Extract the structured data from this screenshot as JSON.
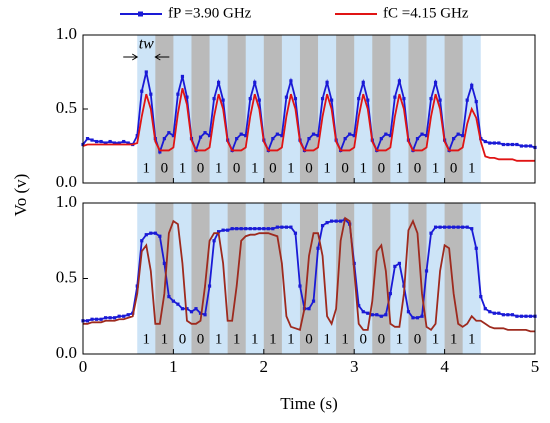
{
  "ylabel": "Vo (v)",
  "chart_data": [
    {
      "type": "line",
      "legend": "top",
      "xlim": [
        0,
        5
      ],
      "ylim": [
        0,
        1
      ],
      "yticks": [
        {
          "value": 0,
          "label": "0.0"
        },
        0.5,
        {
          "value": 1,
          "label": "1.0"
        }
      ],
      "annotation": "tw",
      "bit_edges": [
        0.6,
        0.8,
        1.0,
        1.2,
        1.4,
        1.6,
        1.8,
        2.0,
        2.2,
        2.4,
        2.6,
        2.8,
        3.0,
        3.2,
        3.4,
        3.6,
        3.8,
        4.0,
        4.2,
        4.4
      ],
      "bits": [
        1,
        0,
        1,
        0,
        1,
        0,
        1,
        0,
        1,
        0,
        1,
        0,
        1,
        0,
        1,
        0,
        1,
        0,
        1
      ],
      "x": [
        0,
        0.05,
        0.1,
        0.15,
        0.2,
        0.25,
        0.3,
        0.35,
        0.4,
        0.45,
        0.5,
        0.55,
        0.6,
        0.65,
        0.7,
        0.75,
        0.8,
        0.85,
        0.9,
        0.95,
        1,
        1.05,
        1.1,
        1.15,
        1.2,
        1.25,
        1.3,
        1.35,
        1.4,
        1.45,
        1.5,
        1.55,
        1.6,
        1.65,
        1.7,
        1.75,
        1.8,
        1.85,
        1.9,
        1.95,
        2,
        2.05,
        2.1,
        2.15,
        2.2,
        2.25,
        2.3,
        2.35,
        2.4,
        2.45,
        2.5,
        2.55,
        2.6,
        2.65,
        2.7,
        2.75,
        2.8,
        2.85,
        2.9,
        2.95,
        3,
        3.05,
        3.1,
        3.15,
        3.2,
        3.25,
        3.3,
        3.35,
        3.4,
        3.45,
        3.5,
        3.55,
        3.6,
        3.65,
        3.7,
        3.75,
        3.8,
        3.85,
        3.9,
        3.95,
        4,
        4.05,
        4.1,
        4.15,
        4.2,
        4.25,
        4.3,
        4.35,
        4.4,
        4.45,
        4.5,
        4.55,
        4.6,
        4.65,
        4.7,
        4.75,
        4.8,
        4.85,
        4.9,
        4.95,
        5
      ],
      "series": [
        {
          "name": "fP =3.90 GHz",
          "color": "#1a1ad6",
          "marker": "square",
          "values": [
            0.26,
            0.3,
            0.29,
            0.28,
            0.28,
            0.27,
            0.28,
            0.27,
            0.27,
            0.28,
            0.27,
            0.26,
            0.32,
            0.62,
            0.75,
            0.6,
            0.3,
            0.21,
            0.3,
            0.34,
            0.32,
            0.6,
            0.72,
            0.58,
            0.3,
            0.22,
            0.31,
            0.34,
            0.32,
            0.57,
            0.68,
            0.56,
            0.29,
            0.22,
            0.3,
            0.33,
            0.32,
            0.57,
            0.68,
            0.56,
            0.29,
            0.22,
            0.3,
            0.33,
            0.32,
            0.58,
            0.69,
            0.57,
            0.29,
            0.22,
            0.3,
            0.33,
            0.32,
            0.57,
            0.68,
            0.56,
            0.29,
            0.22,
            0.3,
            0.33,
            0.32,
            0.57,
            0.68,
            0.56,
            0.29,
            0.22,
            0.3,
            0.33,
            0.32,
            0.58,
            0.69,
            0.57,
            0.29,
            0.22,
            0.3,
            0.33,
            0.32,
            0.57,
            0.68,
            0.56,
            0.29,
            0.22,
            0.3,
            0.33,
            0.32,
            0.56,
            0.66,
            0.55,
            0.3,
            0.28,
            0.27,
            0.27,
            0.27,
            0.26,
            0.26,
            0.26,
            0.26,
            0.25,
            0.25,
            0.25,
            0.24
          ]
        },
        {
          "name": "fC =4.15 GHz",
          "color": "#e01414",
          "values": [
            0.25,
            0.26,
            0.26,
            0.26,
            0.26,
            0.26,
            0.26,
            0.26,
            0.26,
            0.26,
            0.26,
            0.26,
            0.27,
            0.45,
            0.6,
            0.5,
            0.28,
            0.22,
            0.22,
            0.22,
            0.24,
            0.47,
            0.64,
            0.53,
            0.29,
            0.22,
            0.22,
            0.22,
            0.24,
            0.45,
            0.6,
            0.5,
            0.28,
            0.22,
            0.22,
            0.22,
            0.24,
            0.45,
            0.6,
            0.5,
            0.28,
            0.22,
            0.22,
            0.22,
            0.24,
            0.45,
            0.6,
            0.5,
            0.28,
            0.22,
            0.22,
            0.22,
            0.24,
            0.45,
            0.6,
            0.5,
            0.28,
            0.22,
            0.22,
            0.22,
            0.24,
            0.45,
            0.6,
            0.5,
            0.28,
            0.22,
            0.22,
            0.22,
            0.24,
            0.45,
            0.6,
            0.5,
            0.28,
            0.22,
            0.22,
            0.22,
            0.24,
            0.45,
            0.6,
            0.5,
            0.28,
            0.22,
            0.22,
            0.22,
            0.24,
            0.4,
            0.5,
            0.44,
            0.28,
            0.18,
            0.17,
            0.17,
            0.16,
            0.16,
            0.16,
            0.16,
            0.15,
            0.15,
            0.15,
            0.15,
            0.15
          ]
        }
      ]
    },
    {
      "type": "line",
      "xlabel": "Time (s)",
      "xlim": [
        0,
        5
      ],
      "ylim": [
        0,
        1
      ],
      "xticks": [
        0,
        1,
        2,
        3,
        4,
        5
      ],
      "yticks": [
        {
          "value": 0,
          "label": "0.0"
        },
        0.5,
        {
          "value": 1,
          "label": "1.0"
        }
      ],
      "bit_edges": [
        0.6,
        0.8,
        1.0,
        1.2,
        1.4,
        1.6,
        1.8,
        2.0,
        2.2,
        2.4,
        2.6,
        2.8,
        3.0,
        3.2,
        3.4,
        3.6,
        3.8,
        4.0,
        4.2,
        4.4
      ],
      "bits": [
        1,
        1,
        0,
        0,
        1,
        1,
        1,
        1,
        1,
        0,
        1,
        1,
        0,
        0,
        1,
        0,
        1,
        1,
        1
      ],
      "x": [
        0,
        0.05,
        0.1,
        0.15,
        0.2,
        0.25,
        0.3,
        0.35,
        0.4,
        0.45,
        0.5,
        0.55,
        0.6,
        0.65,
        0.7,
        0.75,
        0.8,
        0.85,
        0.9,
        0.95,
        1,
        1.05,
        1.1,
        1.15,
        1.2,
        1.25,
        1.3,
        1.35,
        1.4,
        1.45,
        1.5,
        1.55,
        1.6,
        1.65,
        1.7,
        1.75,
        1.8,
        1.85,
        1.9,
        1.95,
        2,
        2.05,
        2.1,
        2.15,
        2.2,
        2.25,
        2.3,
        2.35,
        2.4,
        2.45,
        2.5,
        2.55,
        2.6,
        2.65,
        2.7,
        2.75,
        2.8,
        2.85,
        2.9,
        2.95,
        3,
        3.05,
        3.1,
        3.15,
        3.2,
        3.25,
        3.3,
        3.35,
        3.4,
        3.45,
        3.5,
        3.55,
        3.6,
        3.65,
        3.7,
        3.75,
        3.8,
        3.85,
        3.9,
        3.95,
        4,
        4.05,
        4.1,
        4.15,
        4.2,
        4.25,
        4.3,
        4.35,
        4.4,
        4.45,
        4.5,
        4.55,
        4.6,
        4.65,
        4.7,
        4.75,
        4.8,
        4.85,
        4.9,
        4.95,
        5
      ],
      "series": [
        {
          "color": "#1a1ad6",
          "marker": "square",
          "values": [
            0.22,
            0.22,
            0.23,
            0.23,
            0.23,
            0.24,
            0.24,
            0.24,
            0.25,
            0.25,
            0.26,
            0.27,
            0.45,
            0.75,
            0.79,
            0.8,
            0.8,
            0.78,
            0.6,
            0.38,
            0.35,
            0.33,
            0.3,
            0.3,
            0.28,
            0.3,
            0.27,
            0.26,
            0.45,
            0.75,
            0.81,
            0.82,
            0.82,
            0.83,
            0.83,
            0.83,
            0.83,
            0.83,
            0.83,
            0.83,
            0.83,
            0.83,
            0.83,
            0.84,
            0.84,
            0.84,
            0.84,
            0.8,
            0.45,
            0.3,
            0.3,
            0.35,
            0.7,
            0.85,
            0.87,
            0.88,
            0.88,
            0.88,
            0.89,
            0.86,
            0.6,
            0.32,
            0.28,
            0.27,
            0.26,
            0.26,
            0.25,
            0.26,
            0.4,
            0.58,
            0.6,
            0.45,
            0.28,
            0.24,
            0.24,
            0.25,
            0.55,
            0.8,
            0.84,
            0.84,
            0.84,
            0.84,
            0.84,
            0.84,
            0.84,
            0.84,
            0.83,
            0.7,
            0.38,
            0.3,
            0.28,
            0.27,
            0.27,
            0.26,
            0.26,
            0.26,
            0.25,
            0.25,
            0.25,
            0.25,
            0.25
          ]
        },
        {
          "color": "#9e2a1e",
          "values": [
            0.2,
            0.2,
            0.21,
            0.21,
            0.21,
            0.22,
            0.22,
            0.22,
            0.23,
            0.23,
            0.24,
            0.25,
            0.4,
            0.68,
            0.72,
            0.55,
            0.2,
            0.2,
            0.4,
            0.8,
            0.88,
            0.86,
            0.6,
            0.22,
            0.2,
            0.2,
            0.22,
            0.45,
            0.75,
            0.8,
            0.8,
            0.6,
            0.22,
            0.22,
            0.45,
            0.75,
            0.78,
            0.79,
            0.79,
            0.8,
            0.8,
            0.8,
            0.79,
            0.78,
            0.6,
            0.25,
            0.18,
            0.17,
            0.16,
            0.3,
            0.65,
            0.8,
            0.8,
            0.65,
            0.25,
            0.2,
            0.3,
            0.75,
            0.9,
            0.88,
            0.55,
            0.2,
            0.16,
            0.16,
            0.35,
            0.68,
            0.72,
            0.55,
            0.2,
            0.18,
            0.18,
            0.4,
            0.82,
            0.88,
            0.8,
            0.4,
            0.18,
            0.16,
            0.2,
            0.55,
            0.72,
            0.7,
            0.4,
            0.2,
            0.18,
            0.2,
            0.25,
            0.22,
            0.22,
            0.2,
            0.18,
            0.17,
            0.17,
            0.17,
            0.16,
            0.16,
            0.16,
            0.16,
            0.16,
            0.15,
            0.15
          ]
        }
      ]
    }
  ]
}
